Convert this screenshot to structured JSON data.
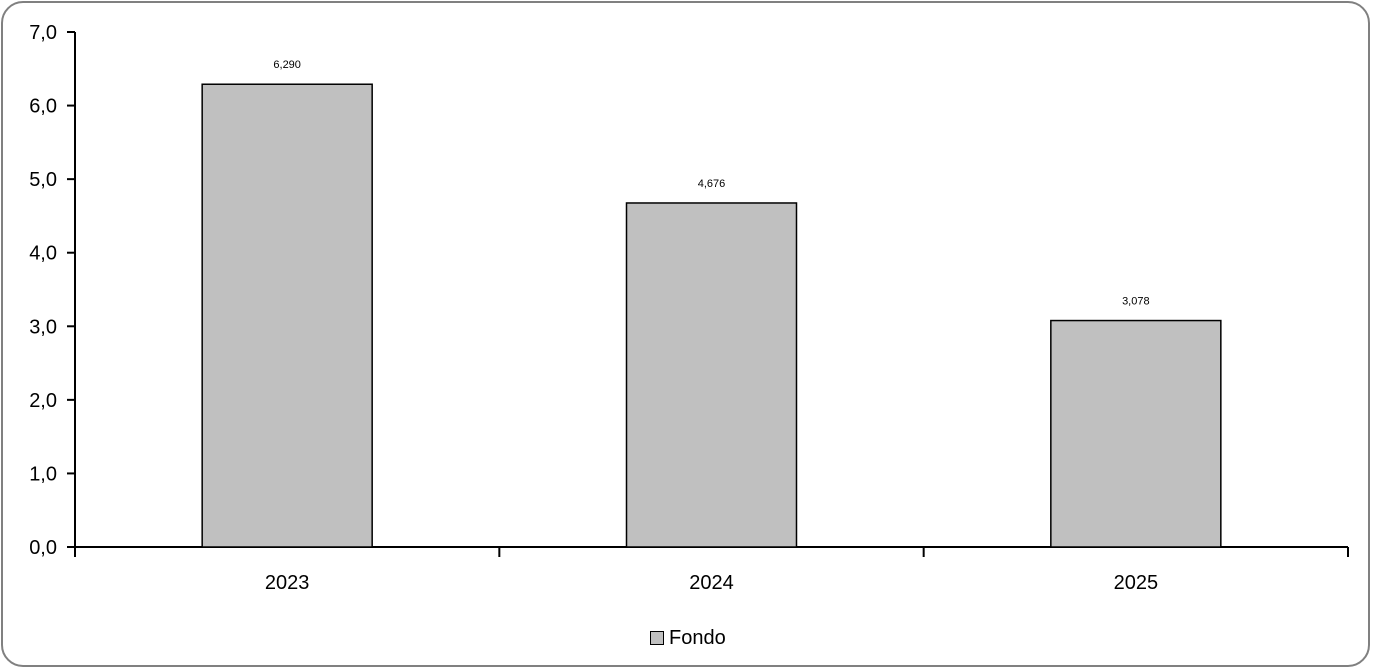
{
  "chart_data": {
    "type": "bar",
    "categories": [
      "2023",
      "2024",
      "2025"
    ],
    "series": [
      {
        "name": "Fondo",
        "values": [
          6.29,
          4.676,
          3.078
        ],
        "labels": [
          "6,290",
          "4,676",
          "3,078"
        ]
      }
    ],
    "ylim": [
      0,
      7
    ],
    "yticks": [
      0,
      1,
      2,
      3,
      4,
      5,
      6,
      7
    ],
    "ytick_labels": [
      "0,0",
      "1,0",
      "2,0",
      "3,0",
      "4,0",
      "5,0",
      "6,0",
      "7,0"
    ],
    "title": "",
    "xlabel": "",
    "ylabel": "",
    "grid": false,
    "legend": "bottom",
    "colors": {
      "bar_fill": "#c0c0c0",
      "bar_stroke": "#000000",
      "axis": "#000000",
      "frame": "#808080"
    }
  }
}
